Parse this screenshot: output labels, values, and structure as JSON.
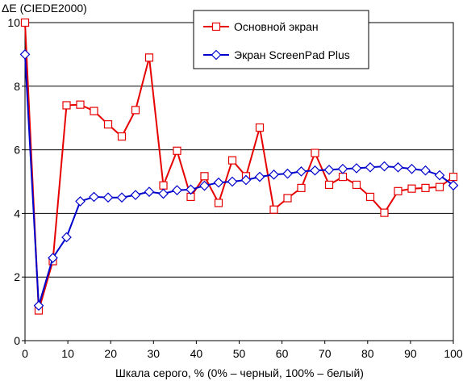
{
  "chart_data": {
    "type": "line",
    "title": "",
    "ylabel": "ΔE (CIEDE2000)",
    "xlabel": "Шкала серого, % (0% – черный, 100% – белый)",
    "xlim": [
      0,
      100
    ],
    "ylim": [
      0,
      10
    ],
    "xticks": [
      0,
      10,
      20,
      30,
      40,
      50,
      60,
      70,
      80,
      90,
      100
    ],
    "yticks": [
      0,
      2,
      4,
      6,
      8,
      10
    ],
    "grid": "horizontal",
    "legend_position": "top-right",
    "series": [
      {
        "name": "Основной экран",
        "color": "#e60000",
        "marker": "square",
        "x": [
          0,
          3.2,
          6.5,
          9.7,
          12.9,
          16.1,
          19.4,
          22.6,
          25.8,
          29.0,
          32.3,
          35.5,
          38.7,
          41.9,
          45.2,
          48.4,
          51.6,
          54.8,
          58.1,
          61.3,
          64.5,
          67.7,
          71.0,
          74.2,
          77.4,
          80.6,
          83.9,
          87.1,
          90.3,
          93.5,
          96.8,
          100
        ],
        "y": [
          10.0,
          0.95,
          2.5,
          7.4,
          7.42,
          7.22,
          6.8,
          6.42,
          7.25,
          8.9,
          4.88,
          5.97,
          4.52,
          5.17,
          4.33,
          5.67,
          5.17,
          6.7,
          4.12,
          4.48,
          4.8,
          5.9,
          4.9,
          5.15,
          4.9,
          4.52,
          4.02,
          4.7,
          4.78,
          4.8,
          4.83,
          5.15
        ]
      },
      {
        "name": "Экран ScreenPad Plus",
        "color": "#0000cc",
        "marker": "diamond",
        "x": [
          0,
          3.2,
          6.5,
          9.7,
          12.9,
          16.1,
          19.4,
          22.6,
          25.8,
          29.0,
          32.3,
          35.5,
          38.7,
          41.9,
          45.2,
          48.4,
          51.6,
          54.8,
          58.1,
          61.3,
          64.5,
          67.7,
          71.0,
          74.2,
          77.4,
          80.6,
          83.9,
          87.1,
          90.3,
          93.5,
          96.8,
          100
        ],
        "y": [
          9.0,
          1.1,
          2.6,
          3.25,
          4.38,
          4.52,
          4.5,
          4.5,
          4.58,
          4.68,
          4.62,
          4.73,
          4.75,
          4.87,
          4.97,
          5.0,
          5.05,
          5.15,
          5.22,
          5.25,
          5.32,
          5.35,
          5.37,
          5.4,
          5.42,
          5.45,
          5.48,
          5.45,
          5.4,
          5.35,
          5.2,
          4.88
        ]
      }
    ]
  }
}
